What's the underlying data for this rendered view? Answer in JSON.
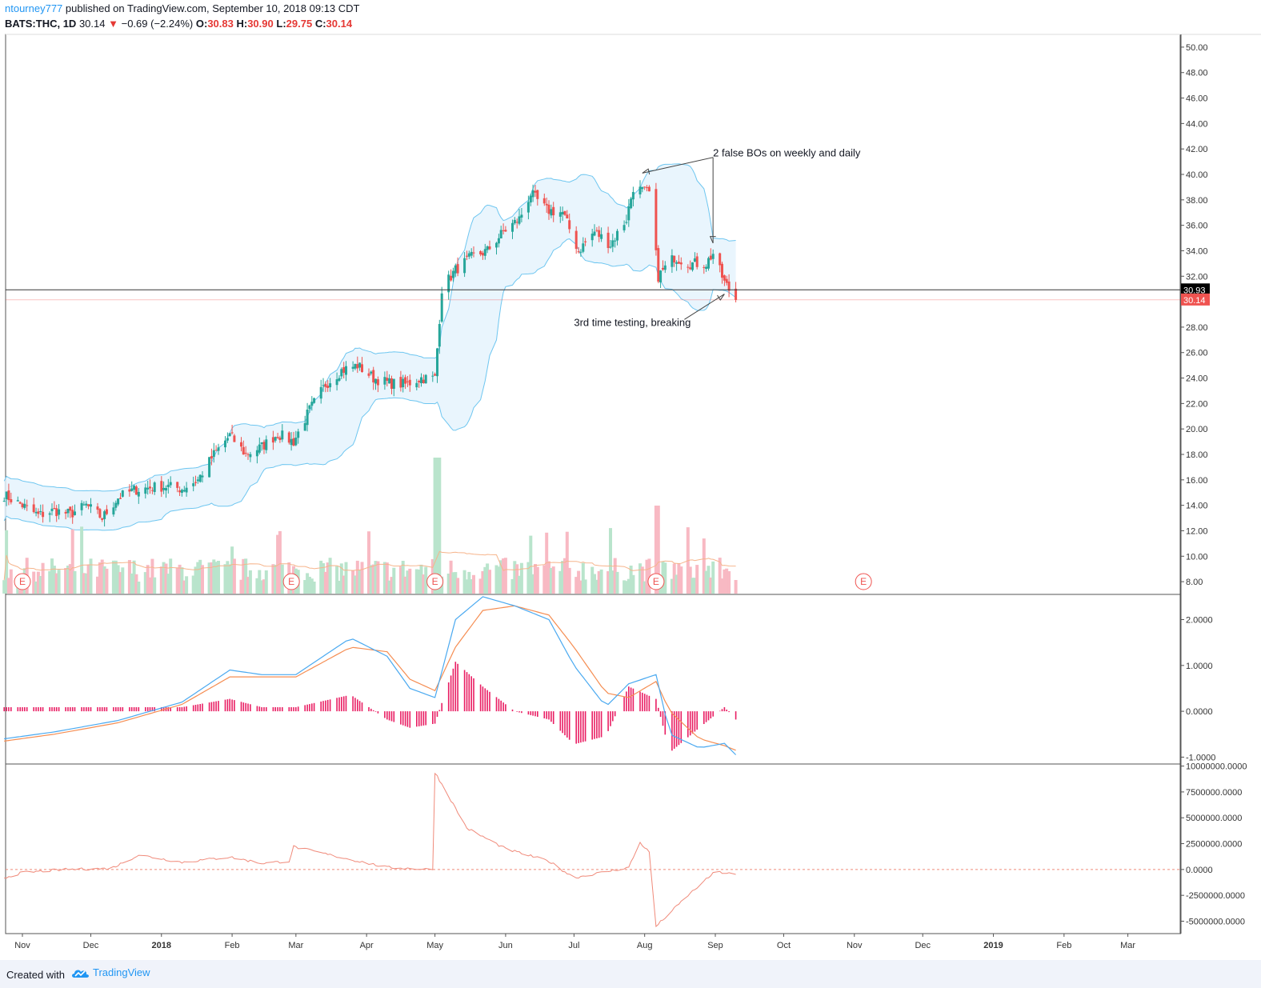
{
  "header": {
    "author": "ntourney777",
    "published": " published on TradingView.com, September 10, 2018 09:13 CDT",
    "symbol": "BATS:THC, 1D",
    "last": "30.14",
    "arrow": "▼",
    "change": "−0.69 (−2.24%)",
    "open_label": "O:",
    "open": "30.83",
    "high_label": "H:",
    "high": "30.90",
    "low_label": "L:",
    "low": "29.75",
    "close_label": "C:",
    "close": "30.14"
  },
  "footer": {
    "created": "Created with",
    "brand": "TradingView"
  },
  "colors": {
    "up": "#26a69a",
    "down": "#ef5350",
    "band": "#6ec6f0",
    "band_fill": "#e3f2fd",
    "macd": "#4aa9f0",
    "signal": "#f58d52",
    "hist": "#e91e63",
    "volume_up": "#b9e4cc",
    "volume_down": "#f8b9c3",
    "volume_ma": "#f6b48b",
    "indicator": "#f08a7a"
  },
  "chart_data": [
    {
      "type": "candlestick",
      "panel": "price",
      "x_ticks": [
        "Nov",
        "Dec",
        "2018",
        "Feb",
        "Mar",
        "Apr",
        "May",
        "Jun",
        "Jul",
        "Aug",
        "Sep",
        "Oct",
        "Nov",
        "Dec",
        "2019",
        "Feb",
        "Mar"
      ],
      "y_ticks": [
        "50.00",
        "48.00",
        "46.00",
        "44.00",
        "42.00",
        "40.00",
        "38.00",
        "36.00",
        "34.00",
        "32.00",
        "28.00",
        "26.00",
        "24.00",
        "22.00",
        "20.00",
        "18.00",
        "16.00",
        "14.00",
        "12.00",
        "10.00",
        "8.00"
      ],
      "ylim": [
        7.0,
        51.0
      ],
      "price_labels": {
        "level": "30.93",
        "last": "30.14"
      },
      "horizontal_line": 30.93,
      "last_price": 30.14,
      "close_series": [
        [
          "2017-10-24",
          14.8
        ],
        [
          "2017-11-01",
          14.0
        ],
        [
          "2017-11-08",
          13.2
        ],
        [
          "2017-11-15",
          13.6
        ],
        [
          "2017-11-22",
          13.3
        ],
        [
          "2017-11-29",
          14.0
        ],
        [
          "2017-12-06",
          13.0
        ],
        [
          "2017-12-13",
          14.6
        ],
        [
          "2017-12-20",
          15.2
        ],
        [
          "2017-12-27",
          15.4
        ],
        [
          "2018-01-03",
          15.5
        ],
        [
          "2018-01-10",
          15.3
        ],
        [
          "2018-01-17",
          16.0
        ],
        [
          "2018-01-24",
          18.0
        ],
        [
          "2018-01-31",
          19.5
        ],
        [
          "2018-02-07",
          18.0
        ],
        [
          "2018-02-14",
          18.6
        ],
        [
          "2018-02-21",
          19.6
        ],
        [
          "2018-02-28",
          19.0
        ],
        [
          "2018-03-07",
          21.5
        ],
        [
          "2018-03-14",
          23.5
        ],
        [
          "2018-03-21",
          24.6
        ],
        [
          "2018-03-28",
          25.0
        ],
        [
          "2018-04-04",
          24.0
        ],
        [
          "2018-04-11",
          23.6
        ],
        [
          "2018-04-18",
          23.5
        ],
        [
          "2018-04-25",
          24.0
        ],
        [
          "2018-05-01",
          24.0
        ],
        [
          "2018-05-04",
          31.0
        ],
        [
          "2018-05-10",
          32.5
        ],
        [
          "2018-05-17",
          33.5
        ],
        [
          "2018-05-24",
          34.0
        ],
        [
          "2018-05-31",
          35.5
        ],
        [
          "2018-06-07",
          36.5
        ],
        [
          "2018-06-12",
          38.5
        ],
        [
          "2018-06-19",
          37.2
        ],
        [
          "2018-06-26",
          37.0
        ],
        [
          "2018-07-03",
          34.0
        ],
        [
          "2018-07-10",
          35.5
        ],
        [
          "2018-07-17",
          34.5
        ],
        [
          "2018-07-24",
          36.5
        ],
        [
          "2018-07-27",
          39.0
        ],
        [
          "2018-08-03",
          38.5
        ],
        [
          "2018-08-07",
          32.0
        ],
        [
          "2018-08-14",
          33.5
        ],
        [
          "2018-08-21",
          33.0
        ],
        [
          "2018-08-28",
          33.0
        ],
        [
          "2018-08-31",
          33.8
        ],
        [
          "2018-09-05",
          31.5
        ],
        [
          "2018-09-10",
          30.14
        ]
      ],
      "annotations": [
        {
          "text": "2 false BOs on weekly and daily",
          "x": "2018-08-31",
          "y": 41.4
        },
        {
          "text": "3rd time testing, breaking",
          "x": "2018-07-01",
          "y": 28.1
        }
      ],
      "earnings_marker": "E",
      "earnings_dates": [
        "2017-11-01",
        "2018-02-27",
        "2018-05-01",
        "2018-08-06",
        "2018-11-05"
      ]
    },
    {
      "type": "line",
      "panel": "macd",
      "y_ticks": [
        "2.0000",
        "1.0000",
        "0.0000",
        "-1.0000"
      ],
      "ylim": [
        -1.15,
        2.55
      ],
      "series": [
        {
          "role": "macd",
          "points": [
            [
              "2017-10-24",
              -0.6
            ],
            [
              "2017-11-15",
              -0.45
            ],
            [
              "2017-12-13",
              -0.2
            ],
            [
              "2018-01-10",
              0.2
            ],
            [
              "2018-01-31",
              0.9
            ],
            [
              "2018-02-14",
              0.8
            ],
            [
              "2018-03-01",
              0.8
            ],
            [
              "2018-03-25",
              1.6
            ],
            [
              "2018-04-10",
              1.2
            ],
            [
              "2018-04-20",
              0.5
            ],
            [
              "2018-05-01",
              0.3
            ],
            [
              "2018-05-10",
              2.0
            ],
            [
              "2018-05-22",
              2.5
            ],
            [
              "2018-06-05",
              2.3
            ],
            [
              "2018-06-20",
              2.0
            ],
            [
              "2018-07-01",
              1.0
            ],
            [
              "2018-07-15",
              0.1
            ],
            [
              "2018-07-25",
              0.6
            ],
            [
              "2018-08-06",
              0.8
            ],
            [
              "2018-08-12",
              -0.5
            ],
            [
              "2018-08-25",
              -0.8
            ],
            [
              "2018-09-05",
              -0.7
            ],
            [
              "2018-09-10",
              -0.95
            ]
          ]
        },
        {
          "role": "signal",
          "points": [
            [
              "2017-10-24",
              -0.65
            ],
            [
              "2017-11-15",
              -0.5
            ],
            [
              "2017-12-13",
              -0.25
            ],
            [
              "2018-01-10",
              0.15
            ],
            [
              "2018-01-31",
              0.75
            ],
            [
              "2018-02-14",
              0.75
            ],
            [
              "2018-03-01",
              0.75
            ],
            [
              "2018-03-25",
              1.4
            ],
            [
              "2018-04-10",
              1.3
            ],
            [
              "2018-04-20",
              0.7
            ],
            [
              "2018-05-01",
              0.45
            ],
            [
              "2018-05-10",
              1.4
            ],
            [
              "2018-05-22",
              2.2
            ],
            [
              "2018-06-05",
              2.3
            ],
            [
              "2018-06-20",
              2.1
            ],
            [
              "2018-07-01",
              1.4
            ],
            [
              "2018-07-15",
              0.4
            ],
            [
              "2018-07-25",
              0.3
            ],
            [
              "2018-08-06",
              0.65
            ],
            [
              "2018-08-12",
              0.0
            ],
            [
              "2018-08-25",
              -0.6
            ],
            [
              "2018-09-05",
              -0.75
            ],
            [
              "2018-09-10",
              -0.85
            ]
          ]
        }
      ]
    },
    {
      "type": "line",
      "panel": "indicator",
      "y_ticks": [
        "10000000.0000",
        "7500000.0000",
        "5000000.0000",
        "2500000.0000",
        "0.0000",
        "-2500000.0000",
        "-5000000.0000"
      ],
      "ylim": [
        -6200000,
        10200000
      ],
      "zero_line": 0,
      "series": [
        {
          "role": "indicator",
          "points": [
            [
              "2017-10-24",
              -800000
            ],
            [
              "2017-11-01",
              -300000
            ],
            [
              "2017-11-20",
              0
            ],
            [
              "2017-12-10",
              100000
            ],
            [
              "2017-12-22",
              1400000
            ],
            [
              "2018-01-10",
              700000
            ],
            [
              "2018-01-31",
              1200000
            ],
            [
              "2018-02-14",
              600000
            ],
            [
              "2018-02-26",
              800000
            ],
            [
              "2018-02-28",
              2200000
            ],
            [
              "2018-03-20",
              1200000
            ],
            [
              "2018-04-10",
              200000
            ],
            [
              "2018-04-30",
              0
            ],
            [
              "2018-05-01",
              9400000
            ],
            [
              "2018-05-15",
              4000000
            ],
            [
              "2018-06-01",
              2000000
            ],
            [
              "2018-06-20",
              800000
            ],
            [
              "2018-07-01",
              -800000
            ],
            [
              "2018-07-25",
              200000
            ],
            [
              "2018-07-30",
              2600000
            ],
            [
              "2018-08-05",
              1200000
            ],
            [
              "2018-08-06",
              -5500000
            ],
            [
              "2018-08-20",
              -2500000
            ],
            [
              "2018-09-01",
              -200000
            ],
            [
              "2018-09-10",
              -500000
            ]
          ]
        }
      ]
    }
  ]
}
